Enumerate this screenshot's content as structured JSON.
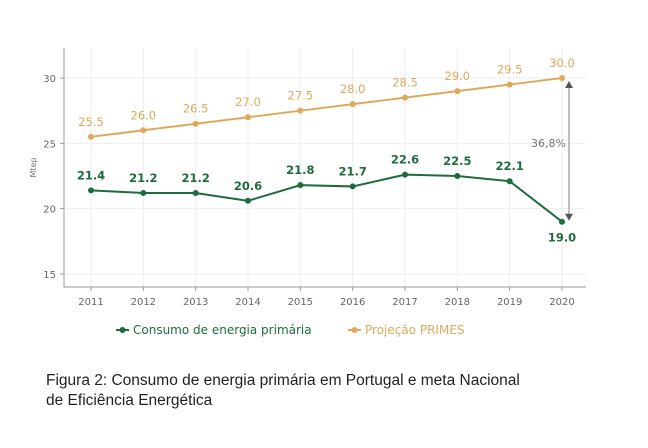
{
  "chart_data": {
    "type": "line",
    "ylabel": "Mtep",
    "xlabel": "",
    "x": [
      2011,
      2012,
      2013,
      2014,
      2015,
      2016,
      2017,
      2018,
      2019,
      2020
    ],
    "ylim": [
      14,
      32.3
    ],
    "yticks": [
      15,
      20,
      25,
      30
    ],
    "grid": true,
    "legend_position": "bottom",
    "series": [
      {
        "name": "Consumo de energia primária",
        "color": "#1e6b3e",
        "values": [
          21.4,
          21.2,
          21.2,
          20.6,
          21.8,
          21.7,
          22.6,
          22.5,
          22.1,
          19.0
        ],
        "labels": [
          "21.4",
          "21.2",
          "21.2",
          "20.6",
          "21.8",
          "21.7",
          "22.6",
          "22.5",
          "22.1",
          "19.0"
        ]
      },
      {
        "name": "Projeção PRIMES",
        "color": "#e0a85a",
        "values": [
          25.5,
          26.0,
          26.5,
          27.0,
          27.5,
          28.0,
          28.5,
          29.0,
          29.5,
          30.0
        ],
        "labels": [
          "25.5",
          "26.0",
          "26.5",
          "27.0",
          "27.5",
          "28.0",
          "28.5",
          "29.0",
          "29.5",
          "30.0"
        ]
      }
    ],
    "annotation": {
      "text": "36,8%",
      "x": 2020,
      "from": 19.0,
      "to": 30.0,
      "color": "#777777"
    }
  },
  "caption": {
    "line1": "Figura 2: Consumo de energia primária em Portugal e meta Nacional",
    "line2": "de Eficiência Energética"
  }
}
